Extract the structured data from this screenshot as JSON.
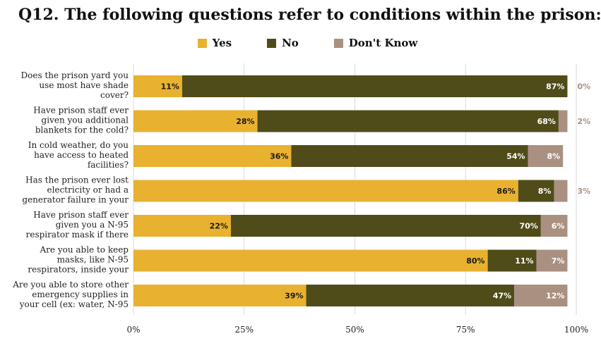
{
  "chart_data": {
    "type": "bar",
    "orientation": "horizontal",
    "stacked": true,
    "title": "Q12. The following questions refer to conditions within the prison:",
    "categories": [
      [
        "Does the prison yard you",
        "use most have shade",
        "cover?"
      ],
      [
        "Have prison staff ever",
        "given you additional",
        "blankets for the cold?"
      ],
      [
        "In cold weather, do you",
        "have access to heated",
        "facilities?"
      ],
      [
        "Has the prison ever lost",
        "electricity or had a",
        "generator failure in your"
      ],
      [
        "Have prison staff ever",
        "given you a N-95",
        "respirator mask if there"
      ],
      [
        "Are you able to keep",
        "masks, like N-95",
        "respirators, inside your"
      ],
      [
        "Are you able to store other",
        "emergency supplies in",
        "your cell (ex: water, N-95"
      ]
    ],
    "series": [
      {
        "name": "Yes",
        "color": "#E8B130",
        "values": [
          11,
          28,
          36,
          86,
          22,
          80,
          39
        ],
        "labels": [
          "11%",
          "28%",
          "36%",
          "86%",
          "22%",
          "80%",
          "39%"
        ]
      },
      {
        "name": "No",
        "color": "#4F4C19",
        "values": [
          87,
          68,
          54,
          8,
          70,
          11,
          47
        ],
        "labels": [
          "87%",
          "68%",
          "54%",
          "8%",
          "70%",
          "11%",
          "47%"
        ]
      },
      {
        "name": "Don't Know",
        "color": "#A99080",
        "values": [
          0,
          2,
          8,
          3,
          6,
          7,
          12
        ],
        "labels": [
          "0%",
          "2%",
          "8%",
          "3%",
          "6%",
          "7%",
          "12%"
        ]
      }
    ],
    "bar_totals": [
      98,
      98,
      97,
      98,
      98,
      98,
      98
    ],
    "xlim": [
      0,
      100
    ],
    "xticks": [
      0,
      25,
      50,
      75,
      100
    ],
    "xtick_labels": [
      "0%",
      "25%",
      "50%",
      "75%",
      "100%"
    ],
    "grid": "vertical",
    "legend_position": "top-center"
  }
}
